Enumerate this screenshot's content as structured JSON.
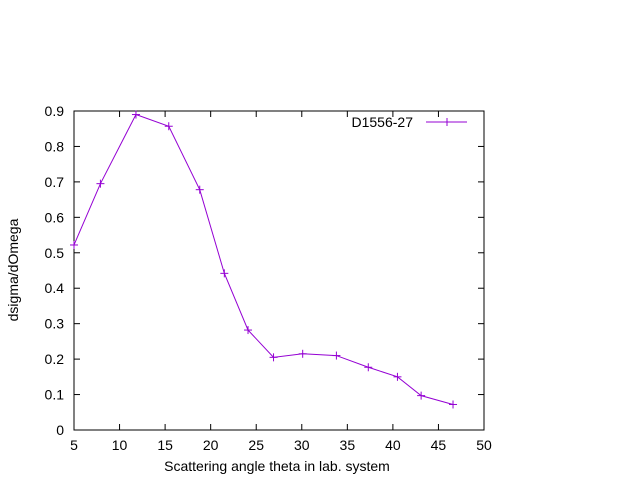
{
  "chart_data": {
    "type": "line",
    "title": "",
    "xlabel": "Scattering angle theta in lab. system",
    "ylabel": "dsigma/dOmega",
    "xlim": [
      5,
      50
    ],
    "ylim": [
      0,
      0.9
    ],
    "xticks": [
      5,
      10,
      15,
      20,
      25,
      30,
      35,
      40,
      45,
      50
    ],
    "yticks": [
      0,
      0.1,
      0.2,
      0.3,
      0.4,
      0.5,
      0.6,
      0.7,
      0.8,
      0.9
    ],
    "xtick_labels": [
      "5",
      "10",
      "15",
      "20",
      "25",
      "30",
      "35",
      "40",
      "45",
      "50"
    ],
    "ytick_labels": [
      "0",
      "0.1",
      "0.2",
      "0.3",
      "0.4",
      "0.5",
      "0.6",
      "0.7",
      "0.8",
      "0.9"
    ],
    "grid": false,
    "legend_position": "top-right",
    "series": [
      {
        "name": "D1556-27",
        "color": "#9400d3",
        "marker": "plus",
        "x": [
          5.0,
          7.9,
          11.8,
          15.4,
          18.8,
          21.5,
          24.1,
          26.9,
          30.1,
          33.8,
          37.3,
          40.5,
          43.1,
          46.6
        ],
        "y": [
          0.522,
          0.695,
          0.89,
          0.857,
          0.678,
          0.442,
          0.282,
          0.205,
          0.215,
          0.21,
          0.177,
          0.15,
          0.097,
          0.072
        ]
      }
    ]
  }
}
